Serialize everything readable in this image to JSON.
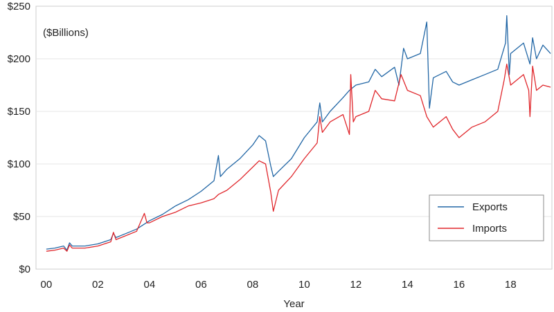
{
  "chart_data": {
    "type": "line",
    "ylabel": "($Billions)",
    "xlabel": "Year",
    "ylim": [
      0,
      250
    ],
    "xlim": [
      1999.6,
      2019.6
    ],
    "y_ticks": [
      0,
      50,
      100,
      150,
      200,
      250
    ],
    "y_tick_labels": [
      "$0",
      "$50",
      "$100",
      "$150",
      "$200",
      "$250"
    ],
    "x_ticks": [
      2000,
      2002,
      2004,
      2006,
      2008,
      2010,
      2012,
      2014,
      2016,
      2018
    ],
    "x_tick_labels": [
      "00",
      "02",
      "04",
      "06",
      "08",
      "10",
      "12",
      "14",
      "16",
      "18"
    ],
    "grid": true,
    "legend_position": "bottom-right",
    "series": [
      {
        "name": "Exports",
        "color": "#2166a5",
        "points": [
          [
            2000.0,
            19
          ],
          [
            2000.33,
            20
          ],
          [
            2000.67,
            22
          ],
          [
            2000.8,
            18
          ],
          [
            2000.9,
            25
          ],
          [
            2001.0,
            22
          ],
          [
            2001.5,
            22
          ],
          [
            2002.0,
            24
          ],
          [
            2002.5,
            28
          ],
          [
            2002.6,
            34
          ],
          [
            2002.7,
            30
          ],
          [
            2003.0,
            33
          ],
          [
            2003.5,
            38
          ],
          [
            2004.0,
            46
          ],
          [
            2004.5,
            52
          ],
          [
            2005.0,
            60
          ],
          [
            2005.5,
            66
          ],
          [
            2006.0,
            74
          ],
          [
            2006.5,
            84
          ],
          [
            2006.67,
            108
          ],
          [
            2006.75,
            88
          ],
          [
            2007.0,
            95
          ],
          [
            2007.5,
            105
          ],
          [
            2008.0,
            118
          ],
          [
            2008.25,
            127
          ],
          [
            2008.5,
            122
          ],
          [
            2008.7,
            98
          ],
          [
            2008.8,
            88
          ],
          [
            2009.0,
            93
          ],
          [
            2009.5,
            105
          ],
          [
            2010.0,
            125
          ],
          [
            2010.5,
            140
          ],
          [
            2010.6,
            158
          ],
          [
            2010.7,
            140
          ],
          [
            2011.0,
            150
          ],
          [
            2011.5,
            163
          ],
          [
            2011.75,
            170
          ],
          [
            2012.0,
            175
          ],
          [
            2012.5,
            178
          ],
          [
            2012.75,
            190
          ],
          [
            2013.0,
            183
          ],
          [
            2013.5,
            192
          ],
          [
            2013.67,
            175
          ],
          [
            2013.85,
            210
          ],
          [
            2014.0,
            200
          ],
          [
            2014.5,
            205
          ],
          [
            2014.75,
            235
          ],
          [
            2014.85,
            153
          ],
          [
            2015.0,
            182
          ],
          [
            2015.5,
            188
          ],
          [
            2015.75,
            178
          ],
          [
            2016.0,
            175
          ],
          [
            2016.5,
            180
          ],
          [
            2017.0,
            185
          ],
          [
            2017.5,
            190
          ],
          [
            2017.8,
            215
          ],
          [
            2017.85,
            241
          ],
          [
            2017.95,
            185
          ],
          [
            2018.0,
            205
          ],
          [
            2018.5,
            215
          ],
          [
            2018.75,
            195
          ],
          [
            2018.85,
            220
          ],
          [
            2019.0,
            200
          ],
          [
            2019.25,
            213
          ],
          [
            2019.55,
            205
          ]
        ]
      },
      {
        "name": "Imports",
        "color": "#e0262b",
        "points": [
          [
            2000.0,
            17
          ],
          [
            2000.33,
            18
          ],
          [
            2000.67,
            20
          ],
          [
            2000.8,
            17
          ],
          [
            2000.9,
            23
          ],
          [
            2001.0,
            20
          ],
          [
            2001.5,
            20
          ],
          [
            2002.0,
            22
          ],
          [
            2002.5,
            26
          ],
          [
            2002.6,
            35
          ],
          [
            2002.7,
            28
          ],
          [
            2003.0,
            31
          ],
          [
            2003.5,
            36
          ],
          [
            2003.8,
            53
          ],
          [
            2003.9,
            44
          ],
          [
            2004.0,
            44
          ],
          [
            2004.5,
            50
          ],
          [
            2005.0,
            54
          ],
          [
            2005.5,
            60
          ],
          [
            2006.0,
            63
          ],
          [
            2006.5,
            67
          ],
          [
            2006.67,
            71
          ],
          [
            2007.0,
            75
          ],
          [
            2007.5,
            85
          ],
          [
            2008.0,
            97
          ],
          [
            2008.25,
            103
          ],
          [
            2008.5,
            100
          ],
          [
            2008.7,
            73
          ],
          [
            2008.8,
            55
          ],
          [
            2009.0,
            75
          ],
          [
            2009.5,
            88
          ],
          [
            2010.0,
            105
          ],
          [
            2010.5,
            120
          ],
          [
            2010.6,
            145
          ],
          [
            2010.7,
            130
          ],
          [
            2011.0,
            140
          ],
          [
            2011.5,
            147
          ],
          [
            2011.75,
            128
          ],
          [
            2011.8,
            185
          ],
          [
            2011.9,
            140
          ],
          [
            2012.0,
            145
          ],
          [
            2012.5,
            150
          ],
          [
            2012.75,
            170
          ],
          [
            2013.0,
            162
          ],
          [
            2013.5,
            160
          ],
          [
            2013.75,
            185
          ],
          [
            2014.0,
            170
          ],
          [
            2014.5,
            165
          ],
          [
            2014.75,
            145
          ],
          [
            2015.0,
            135
          ],
          [
            2015.5,
            145
          ],
          [
            2015.75,
            133
          ],
          [
            2016.0,
            125
          ],
          [
            2016.5,
            135
          ],
          [
            2017.0,
            140
          ],
          [
            2017.5,
            150
          ],
          [
            2017.75,
            180
          ],
          [
            2017.85,
            195
          ],
          [
            2018.0,
            175
          ],
          [
            2018.5,
            185
          ],
          [
            2018.7,
            170
          ],
          [
            2018.75,
            145
          ],
          [
            2018.85,
            193
          ],
          [
            2019.0,
            170
          ],
          [
            2019.25,
            175
          ],
          [
            2019.55,
            173
          ]
        ]
      }
    ]
  }
}
